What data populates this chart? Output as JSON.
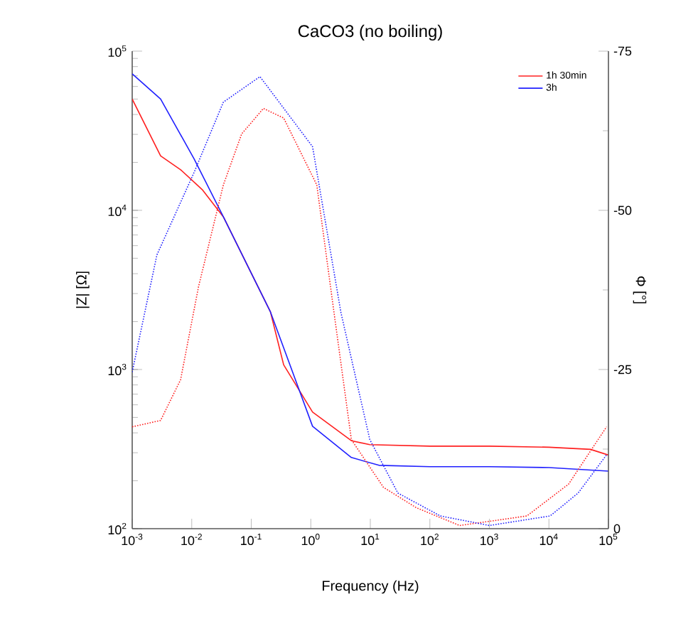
{
  "chart_data": {
    "type": "line",
    "title": "CaCO3 (no boiling)",
    "xlabel": "Frequency (Hz)",
    "ylabel": "|Z| [Ω]",
    "y2label": "Φ [°]",
    "log": "xy",
    "grid": false,
    "legend": "top right",
    "marker": "none",
    "xlim": [
      0.001,
      100000
    ],
    "ylim": [
      100,
      100000
    ],
    "y2lim": [
      0,
      -75
    ],
    "xticks": [
      {
        "value": 0.001,
        "label": "10$^{-3}$"
      },
      {
        "value": 0.01,
        "label": "10$^{-2}$"
      },
      {
        "value": 0.1,
        "label": "10$^{-1}$"
      },
      {
        "value": 1,
        "label": "10$^{0}$"
      },
      {
        "value": 10,
        "label": "10$^{1}$"
      },
      {
        "value": 100,
        "label": "10$^{2}$"
      },
      {
        "value": 1000,
        "label": "10$^{3}$"
      },
      {
        "value": 10000,
        "label": "10$^{4}$"
      },
      {
        "value": 100000,
        "label": "10$^{5}$"
      }
    ],
    "yticks": [
      {
        "value": 100,
        "label": "10$^{2}$"
      },
      {
        "value": 1000,
        "label": "10$^{3}$"
      },
      {
        "value": 10000,
        "label": "10$^{4}$"
      },
      {
        "value": 100000,
        "label": "10$^{5}$"
      }
    ],
    "y2ticks": [
      -75,
      -50,
      -25,
      0
    ],
    "series": [
      {
        "name": "1h 30min",
        "color": "#ff2020",
        "line_style": "solid",
        "x": [
          0.001,
          0.003,
          0.0065,
          0.015,
          0.034,
          0.21,
          0.35,
          1.07,
          4.8,
          9.8,
          100,
          1000,
          10000,
          50000,
          100000
        ],
        "values": [
          50000,
          22000,
          18000,
          13500,
          9100,
          2300,
          1070,
          540,
          357,
          337,
          330,
          330,
          325,
          315,
          290
        ]
      },
      {
        "name": "3h",
        "color": "#2020ff",
        "line_style": "solid",
        "x": [
          0.001,
          0.003,
          0.011,
          0.034,
          0.21,
          1.07,
          4.8,
          14,
          100,
          1000,
          10000,
          100000
        ],
        "values": [
          72000,
          50000,
          21000,
          9100,
          2300,
          440,
          280,
          250,
          245,
          245,
          242,
          230
        ]
      },
      {
        "color": "#ff2020",
        "line_style": "dotted",
        "axis": "y2",
        "x": [
          0.001,
          0.003,
          0.0065,
          0.013,
          0.034,
          0.069,
          0.16,
          0.35,
          1.26,
          2.45,
          4.8,
          16.6,
          59,
          316,
          4270,
          21400,
          93000
        ],
        "values": [
          -16,
          -17,
          -23.4,
          -38,
          -54,
          -62,
          -66,
          -64.5,
          -54,
          -34,
          -14,
          -6.5,
          -3.3,
          -0.5,
          -2,
          -7,
          -16
        ]
      },
      {
        "color": "#2020ff",
        "line_style": "dotted",
        "axis": "y2",
        "x": [
          0.001,
          0.0026,
          0.011,
          0.034,
          0.14,
          1.07,
          3.2,
          9.8,
          29,
          150,
          1000,
          10500,
          31000,
          93000
        ],
        "values": [
          -24.6,
          -43,
          -56,
          -67,
          -71,
          -60,
          -34,
          -14,
          -5.6,
          -2,
          -0.5,
          -2,
          -5.6,
          -11.6
        ]
      }
    ]
  }
}
